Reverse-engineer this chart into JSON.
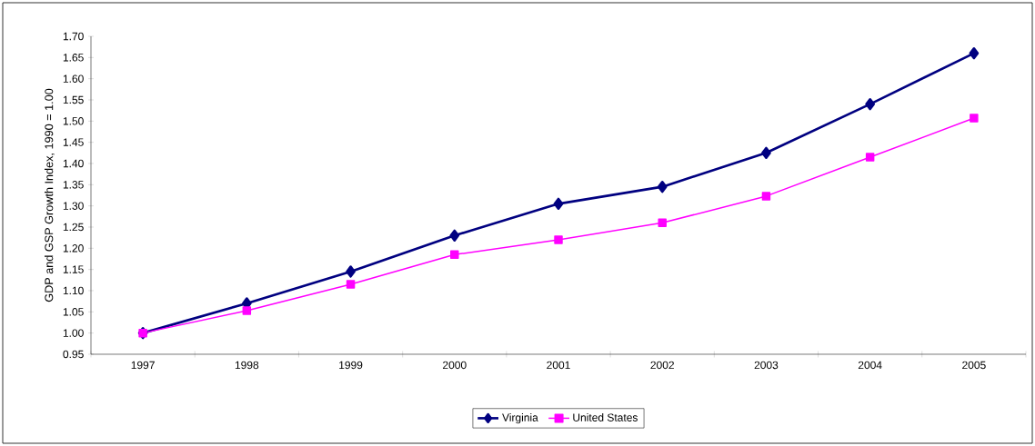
{
  "chart_data": {
    "type": "line",
    "ylabel": "GDP and GSP Growth Index, 1990 = 1.00",
    "categories": [
      "1997",
      "1998",
      "1999",
      "2000",
      "2001",
      "2002",
      "2003",
      "2004",
      "2005"
    ],
    "series": [
      {
        "name": "Virginia",
        "color": "#000080",
        "marker": "diamond",
        "values": [
          1.0,
          1.07,
          1.145,
          1.23,
          1.305,
          1.345,
          1.425,
          1.54,
          1.66
        ]
      },
      {
        "name": "United States",
        "color": "#ff00ff",
        "marker": "square",
        "values": [
          1.0,
          1.053,
          1.115,
          1.185,
          1.22,
          1.26,
          1.323,
          1.415,
          1.507
        ]
      }
    ],
    "ylim": [
      0.95,
      1.7
    ],
    "yticks": [
      {
        "value": 0.95,
        "label": "0.95"
      },
      {
        "value": 1.0,
        "label": "1.00"
      },
      {
        "value": 1.05,
        "label": "1.05"
      },
      {
        "value": 1.1,
        "label": "1.10"
      },
      {
        "value": 1.15,
        "label": "1.15"
      },
      {
        "value": 1.2,
        "label": "1.20"
      },
      {
        "value": 1.25,
        "label": "1.25"
      },
      {
        "value": 1.3,
        "label": "1.30"
      },
      {
        "value": 1.35,
        "label": "1.35"
      },
      {
        "value": 1.4,
        "label": "1.40"
      },
      {
        "value": 1.45,
        "label": "1.45"
      },
      {
        "value": 1.5,
        "label": "1.50"
      },
      {
        "value": 1.55,
        "label": "1.55"
      },
      {
        "value": 1.6,
        "label": "1.60"
      },
      {
        "value": 1.65,
        "label": "1.65"
      },
      {
        "value": 1.7,
        "label": "1.70"
      }
    ],
    "grid": false,
    "legend": "bottom"
  }
}
